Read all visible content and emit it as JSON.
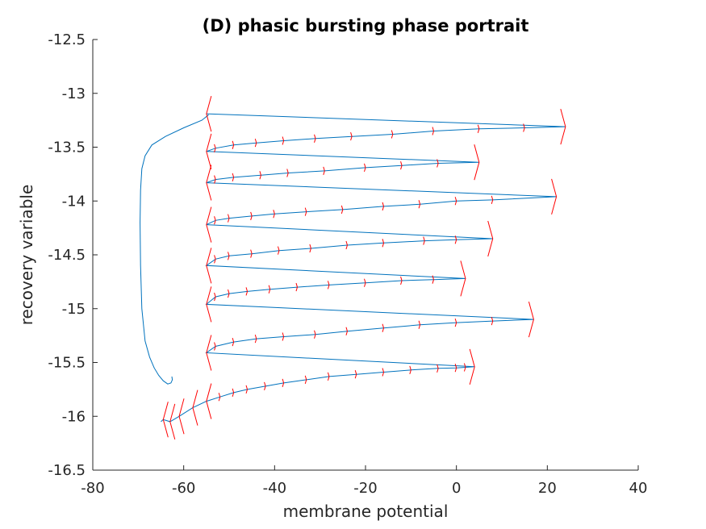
{
  "chart_data": {
    "type": "line",
    "title": "(D) phasic bursting phase portrait",
    "xlabel": "membrane potential",
    "ylabel": "recovery variable",
    "xlim": [
      -80,
      40
    ],
    "ylim": [
      -16.5,
      -12.5
    ],
    "xticks": [
      "-80",
      "-60",
      "-40",
      "-20",
      "0",
      "20",
      "40"
    ],
    "yticks": [
      "-12.5",
      "-13",
      "-13.5",
      "-14",
      "-14.5",
      "-15",
      "-15.5",
      "-16",
      "-16.5"
    ],
    "grid": false,
    "colors": {
      "trajectory": "#0072BD",
      "arrows": "#FF0000",
      "axes": "#262626"
    },
    "series": [
      {
        "x": [
          -65,
          -64.5,
          -63,
          -61,
          -58,
          -55,
          -52,
          -49,
          -46,
          -42,
          -38,
          -33,
          -28,
          -22,
          -16,
          -10,
          -4,
          0,
          2,
          4,
          -55,
          -53,
          -49,
          -44,
          -38,
          -31,
          -24,
          -16,
          -8,
          0,
          8,
          17,
          -55,
          -53,
          -50,
          -46,
          -41,
          -35,
          -28,
          -20,
          -12,
          -5,
          2,
          -55,
          -53,
          -50,
          -45,
          -39,
          -32,
          -24,
          -16,
          -7,
          0,
          8,
          -55,
          -53,
          -50,
          -45,
          -40,
          -33,
          -25,
          -16,
          -8,
          0,
          8,
          22,
          -55,
          -53,
          -49,
          -43,
          -37,
          -29,
          -20,
          -12,
          -4,
          5,
          -55,
          -53,
          -49,
          -44,
          -38,
          -31,
          -23,
          -14,
          -5,
          5,
          15,
          24,
          -55
        ],
        "y": [
          -16.05,
          -16.03,
          -16.05,
          -16.0,
          -15.92,
          -15.86,
          -15.82,
          -15.78,
          -15.75,
          -15.72,
          -15.69,
          -15.66,
          -15.63,
          -15.61,
          -15.59,
          -15.57,
          -15.555,
          -15.55,
          -15.545,
          -15.54,
          -15.41,
          -15.35,
          -15.31,
          -15.28,
          -15.26,
          -15.24,
          -15.21,
          -15.18,
          -15.15,
          -15.13,
          -15.115,
          -15.1,
          -14.96,
          -14.89,
          -14.86,
          -14.84,
          -14.82,
          -14.8,
          -14.78,
          -14.76,
          -14.74,
          -14.73,
          -14.72,
          -14.6,
          -14.54,
          -14.51,
          -14.49,
          -14.46,
          -14.44,
          -14.41,
          -14.39,
          -14.37,
          -14.36,
          -14.35,
          -14.22,
          -14.18,
          -14.16,
          -14.14,
          -14.12,
          -14.1,
          -14.08,
          -14.05,
          -14.03,
          -14.0,
          -13.99,
          -13.96,
          -13.83,
          -13.8,
          -13.78,
          -13.76,
          -13.74,
          -13.72,
          -13.69,
          -13.67,
          -13.65,
          -13.64,
          -13.54,
          -13.51,
          -13.48,
          -13.46,
          -13.44,
          -13.42,
          -13.4,
          -13.38,
          -13.35,
          -13.33,
          -13.32,
          -13.31,
          -13.19
        ]
      }
    ]
  }
}
